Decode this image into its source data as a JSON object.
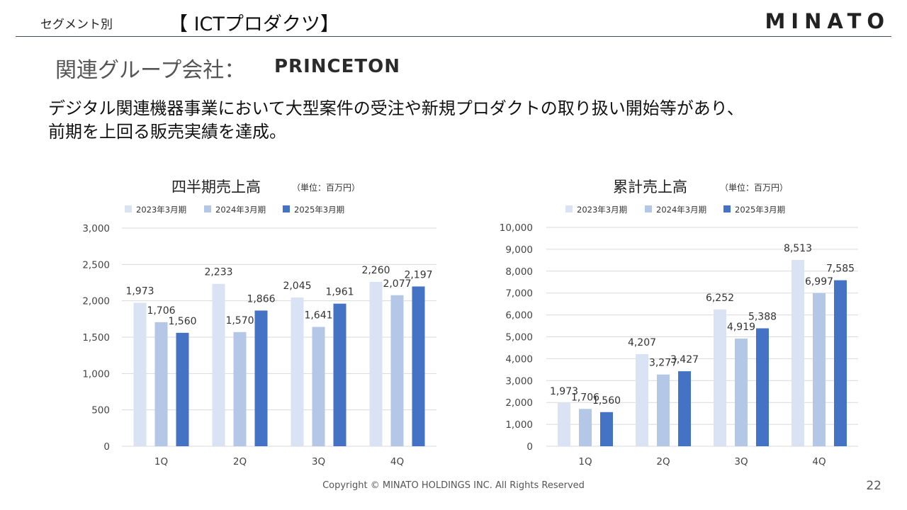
{
  "header": {
    "segment_label": "セグメント別",
    "section_title": "【 ICTプロダクツ】",
    "brand": "MINATO"
  },
  "company": {
    "label": "関連グループ会社：",
    "logo_text": "PRINCETON"
  },
  "summary": {
    "line1": "デジタル関連機器事業において大型案件の受注や新規プロダクトの取り扱い開始等があり、",
    "line2": "前期を上回る販売実績を達成。"
  },
  "colors": {
    "fy2023": "#dae3f3",
    "fy2024": "#b4c7e7",
    "fy2025": "#4472c4",
    "grid": "#d9d9d9",
    "rule": "#3c4a5c"
  },
  "chart_data": [
    {
      "type": "bar",
      "title": "四半期売上高",
      "unit": "（単位：百万円）",
      "categories": [
        "1Q",
        "2Q",
        "3Q",
        "4Q"
      ],
      "series": [
        {
          "name": "2023年3月期",
          "values": [
            1973,
            2233,
            2045,
            2260
          ]
        },
        {
          "name": "2024年3月期",
          "values": [
            1706,
            1570,
            1641,
            2077
          ]
        },
        {
          "name": "2025年3月期",
          "values": [
            1560,
            1866,
            1961,
            2197
          ]
        }
      ],
      "ylim": [
        0,
        3000
      ],
      "yticks": [
        0,
        500,
        1000,
        1500,
        2000,
        2500,
        3000
      ],
      "grid": true,
      "legend": "top"
    },
    {
      "type": "bar",
      "title": "累計売上高",
      "unit": "（単位：百万円）",
      "categories": [
        "1Q",
        "2Q",
        "3Q",
        "4Q"
      ],
      "series": [
        {
          "name": "2023年3月期",
          "values": [
            1973,
            4207,
            6252,
            8513
          ]
        },
        {
          "name": "2024年3月期",
          "values": [
            1706,
            3277,
            4919,
            6997
          ]
        },
        {
          "name": "2025年3月期",
          "values": [
            1560,
            3427,
            5388,
            7585
          ]
        }
      ],
      "ylim": [
        0,
        10000
      ],
      "yticks": [
        0,
        1000,
        2000,
        3000,
        4000,
        5000,
        6000,
        7000,
        8000,
        9000,
        10000
      ],
      "grid": true,
      "legend": "top"
    }
  ],
  "footer": {
    "copyright": "Copyright © MINATO HOLDINGS INC. All Rights Reserved",
    "page": "22"
  }
}
